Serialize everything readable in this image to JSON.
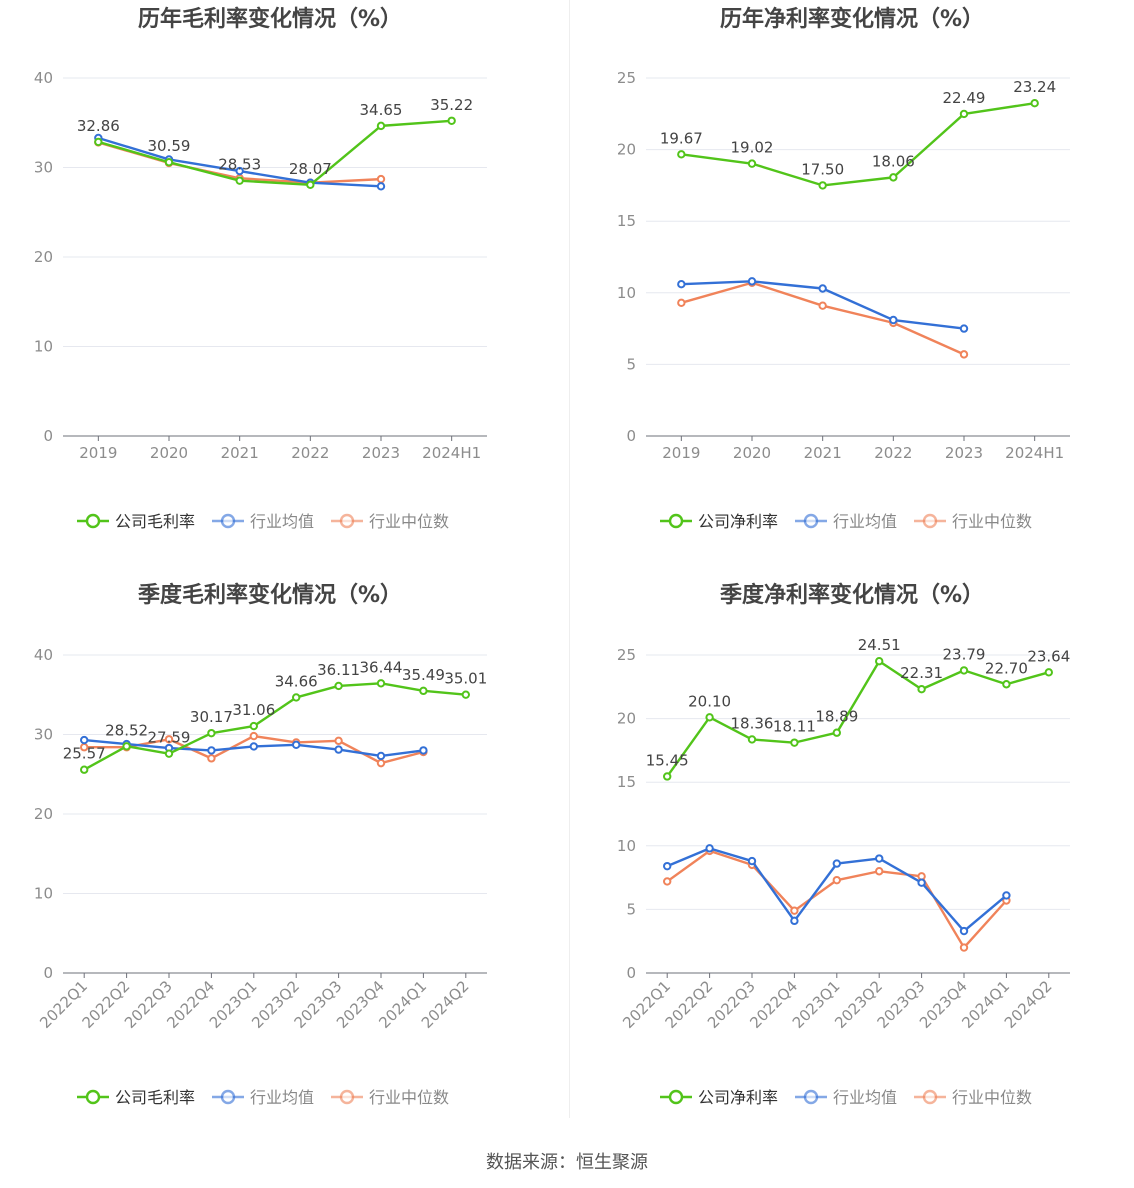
{
  "source_text": "数据来源：恒生聚源",
  "colors": {
    "company": "#52c41a",
    "avg": "#3370d6",
    "median": "#f0835a",
    "grid": "#e6e8ef",
    "axis": "#6e7079",
    "tick": "#8c8c8c",
    "title": "#444444"
  },
  "chart_data": [
    {
      "type": "line",
      "title": "历年毛利率变化情况（%）",
      "categories": [
        "2019",
        "2020",
        "2021",
        "2022",
        "2023",
        "2024H1"
      ],
      "ylim": [
        0,
        40
      ],
      "yticks": [
        0,
        10,
        20,
        30,
        40
      ],
      "rotate_labels": false,
      "label_series": 0,
      "legend_position": "bottom-center",
      "series": [
        {
          "name": "公司毛利率",
          "color": "#52c41a",
          "values": [
            32.86,
            30.59,
            28.53,
            28.07,
            34.65,
            35.22
          ],
          "labels": [
            "32.86",
            "30.59",
            "28.53",
            "28.07",
            "34.65",
            "35.22"
          ]
        },
        {
          "name": "行业均值",
          "color": "#3370d6",
          "values": [
            33.3,
            30.9,
            29.6,
            28.3,
            27.9,
            null
          ]
        },
        {
          "name": "行业中位数",
          "color": "#f0835a",
          "values": [
            32.8,
            30.5,
            28.8,
            28.3,
            28.7,
            null
          ]
        }
      ]
    },
    {
      "type": "line",
      "title": "历年净利率变化情况（%）",
      "categories": [
        "2019",
        "2020",
        "2021",
        "2022",
        "2023",
        "2024H1"
      ],
      "ylim": [
        0,
        25
      ],
      "yticks": [
        0,
        5,
        10,
        15,
        20,
        25
      ],
      "rotate_labels": false,
      "label_series": 0,
      "legend_position": "bottom-center",
      "series": [
        {
          "name": "公司净利率",
          "color": "#52c41a",
          "values": [
            19.67,
            19.02,
            17.5,
            18.06,
            22.49,
            23.24
          ],
          "labels": [
            "19.67",
            "19.02",
            "17.50",
            "18.06",
            "22.49",
            "23.24"
          ]
        },
        {
          "name": "行业均值",
          "color": "#3370d6",
          "values": [
            10.6,
            10.8,
            10.3,
            8.1,
            7.5,
            null
          ]
        },
        {
          "name": "行业中位数",
          "color": "#f0835a",
          "values": [
            9.3,
            10.7,
            9.1,
            7.9,
            5.7,
            null
          ]
        }
      ]
    },
    {
      "type": "line",
      "title": "季度毛利率变化情况（%）",
      "categories": [
        "2022Q1",
        "2022Q2",
        "2022Q3",
        "2022Q4",
        "2023Q1",
        "2023Q2",
        "2023Q3",
        "2023Q4",
        "2024Q1",
        "2024Q2"
      ],
      "ylim": [
        0,
        40
      ],
      "yticks": [
        0,
        10,
        20,
        30,
        40
      ],
      "rotate_labels": true,
      "label_series": 0,
      "legend_position": "bottom-center",
      "series": [
        {
          "name": "公司毛利率",
          "color": "#52c41a",
          "values": [
            25.57,
            28.52,
            27.59,
            30.17,
            31.06,
            34.66,
            36.11,
            36.44,
            35.49,
            35.01
          ],
          "labels": [
            "25.57",
            "28.52",
            "27.59",
            "30.17",
            "31.06",
            "34.66",
            "36.11",
            "36.44",
            "35.49",
            "35.01"
          ]
        },
        {
          "name": "行业均值",
          "color": "#3370d6",
          "values": [
            29.3,
            28.8,
            28.3,
            28.0,
            28.5,
            28.7,
            28.1,
            27.3,
            28.0,
            null
          ]
        },
        {
          "name": "行业中位数",
          "color": "#f0835a",
          "values": [
            28.4,
            28.4,
            29.4,
            27.0,
            29.8,
            29.0,
            29.2,
            26.4,
            27.8,
            null
          ]
        }
      ]
    },
    {
      "type": "line",
      "title": "季度净利率变化情况（%）",
      "categories": [
        "2022Q1",
        "2022Q2",
        "2022Q3",
        "2022Q4",
        "2023Q1",
        "2023Q2",
        "2023Q3",
        "2023Q4",
        "2024Q1",
        "2024Q2"
      ],
      "ylim": [
        0,
        25
      ],
      "yticks": [
        0,
        5,
        10,
        15,
        20,
        25
      ],
      "rotate_labels": true,
      "label_series": 0,
      "legend_position": "bottom-center",
      "series": [
        {
          "name": "公司净利率",
          "color": "#52c41a",
          "values": [
            15.45,
            20.1,
            18.36,
            18.11,
            18.89,
            24.51,
            22.31,
            23.79,
            22.7,
            23.64
          ],
          "labels": [
            "15.45",
            "20.10",
            "18.36",
            "18.11",
            "18.89",
            "24.51",
            "22.31",
            "23.79",
            "22.70",
            "23.64"
          ]
        },
        {
          "name": "行业均值",
          "color": "#3370d6",
          "values": [
            8.4,
            9.8,
            8.8,
            4.1,
            8.6,
            9.0,
            7.1,
            3.3,
            6.1,
            null
          ]
        },
        {
          "name": "行业中位数",
          "color": "#f0835a",
          "values": [
            7.2,
            9.6,
            8.5,
            4.9,
            7.3,
            8.0,
            7.6,
            2.0,
            5.7,
            null
          ]
        }
      ]
    }
  ]
}
